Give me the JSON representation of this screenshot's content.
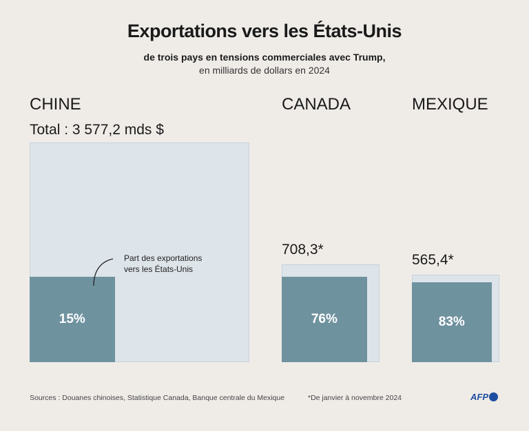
{
  "header": {
    "title": "Exportations vers les États-Unis",
    "subtitle_bold": "de trois pays en tensions commerciales avec Trump,",
    "subtitle": "en milliards de dollars en 2024"
  },
  "chart_data": {
    "type": "proportional-area squares",
    "unit": "milliards de dollars",
    "countries": [
      {
        "name": "CHINE",
        "total_label": "Total : 3 577,2 mds $",
        "total": 3577.2,
        "us_share_pct": 15,
        "share_label": "15%"
      },
      {
        "name": "CANADA",
        "total_label": "708,3*",
        "total": 708.3,
        "us_share_pct": 76,
        "share_label": "76%"
      },
      {
        "name": "MEXIQUE",
        "total_label": "565,4*",
        "total": 565.4,
        "us_share_pct": 83,
        "share_label": "83%"
      }
    ],
    "annotation": "Part des exportations vers les États-Unis",
    "colors": {
      "total": "#dde4ea",
      "share": "#6f929f",
      "background": "#efece8"
    }
  },
  "footer": {
    "sources": "Sources : Douanes chinoises, Statistique Canada, Banque centrale du Mexique",
    "note": "*De janvier à novembre 2024",
    "logo": "AFP"
  }
}
